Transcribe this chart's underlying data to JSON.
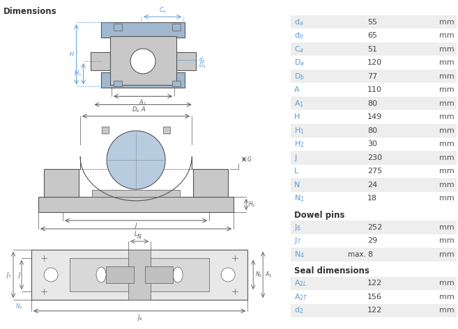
{
  "title": "Dimensions",
  "bg_color": "#ffffff",
  "table_bg_even": "#eeeeee",
  "table_bg_odd": "#ffffff",
  "label_color": "#5b9bd5",
  "value_color": "#404040",
  "unit_color": "#555555",
  "header_color": "#333333",
  "dim_color": "#5b9bd5",
  "draw_color": "#555555",
  "rows_main": [
    {
      "label": "d$_a$",
      "value": "55",
      "unit": "mm"
    },
    {
      "label": "d$_b$",
      "value": "65",
      "unit": "mm"
    },
    {
      "label": "C$_a$",
      "value": "51",
      "unit": "mm"
    },
    {
      "label": "D$_a$",
      "value": "120",
      "unit": "mm"
    },
    {
      "label": "D$_b$",
      "value": "77",
      "unit": "mm"
    },
    {
      "label": "A",
      "value": "110",
      "unit": "mm"
    },
    {
      "label": "A$_1$",
      "value": "80",
      "unit": "mm"
    },
    {
      "label": "H",
      "value": "149",
      "unit": "mm"
    },
    {
      "label": "H$_1$",
      "value": "80",
      "unit": "mm"
    },
    {
      "label": "H$_2$",
      "value": "30",
      "unit": "mm"
    },
    {
      "label": "J",
      "value": "230",
      "unit": "mm"
    },
    {
      "label": "L",
      "value": "275",
      "unit": "mm"
    },
    {
      "label": "N",
      "value": "24",
      "unit": "mm"
    },
    {
      "label": "N$_1$",
      "value": "18",
      "unit": "mm"
    }
  ],
  "rows_dowel": [
    {
      "label": "J$_6$",
      "value": "252",
      "unit": "mm",
      "prefix": ""
    },
    {
      "label": "J$_7$",
      "value": "29",
      "unit": "mm",
      "prefix": ""
    },
    {
      "label": "N$_4$",
      "value": "8",
      "unit": "mm",
      "prefix": "max."
    }
  ],
  "rows_seal": [
    {
      "label": "A$_{2L}$",
      "value": "122",
      "unit": "mm",
      "prefix": ""
    },
    {
      "label": "A$_{2T}$",
      "value": "156",
      "unit": "mm",
      "prefix": ""
    },
    {
      "label": "d$_2$",
      "value": "122",
      "unit": "mm",
      "prefix": ""
    }
  ],
  "section_dowel": "Dowel pins",
  "section_seal": "Seal dimensions",
  "fig_w": 6.57,
  "fig_h": 4.73,
  "dpi": 100
}
